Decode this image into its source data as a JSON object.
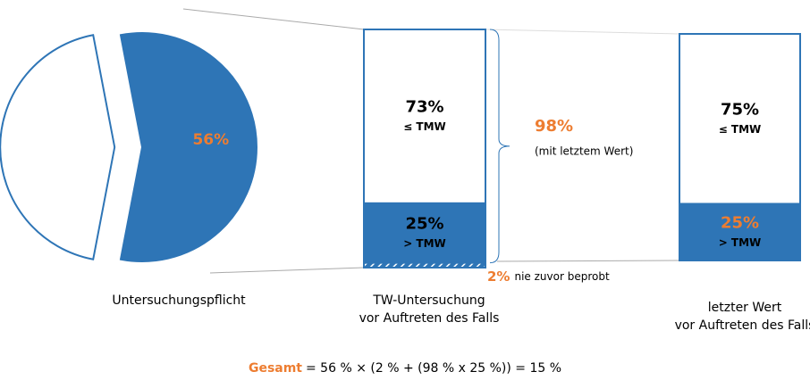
{
  "chart_data": [
    {
      "type": "pie",
      "values": [
        56,
        44
      ],
      "value_labels": [
        "56%",
        null
      ],
      "colors": [
        "#2e75b6",
        "#ffffff"
      ],
      "label": "Untersuchungspflicht"
    },
    {
      "type": "stacked-bar",
      "series": [
        {
          "name": "≤ TMW",
          "values": [
            73
          ],
          "value_labels": [
            "73%"
          ],
          "color": "#ffffff",
          "label_color": "#000000"
        },
        {
          "name": "> TMW",
          "values": [
            25
          ],
          "value_labels": [
            "25%"
          ],
          "color": "#2e75b6",
          "label_color": "#000000"
        },
        {
          "name": "nie zuvor beprobt",
          "values": [
            2
          ],
          "value_labels": [
            "2%"
          ],
          "color": "#2e75b6",
          "hatch": true,
          "label_color": "#ed7d31"
        }
      ],
      "label": [
        "TW-Untersuchung",
        "vor Auftreten des Falls"
      ],
      "bracket": {
        "value": 98,
        "label": "98%",
        "note": "(mit letztem Wert)"
      }
    },
    {
      "type": "stacked-bar",
      "series": [
        {
          "name": "≤ TMW",
          "values": [
            75
          ],
          "value_labels": [
            "75%"
          ],
          "color": "#ffffff",
          "label_color": "#000000"
        },
        {
          "name": "> TMW",
          "values": [
            25
          ],
          "value_labels": [
            "25%"
          ],
          "color": "#2e75b6",
          "label_color": "#ed7d31"
        }
      ],
      "label": [
        "letzter Wert",
        "vor Auftreten des Falls"
      ]
    }
  ],
  "formula": {
    "label": "Gesamt",
    "text": "= 56 % × (2 % + (98 % x 25 %)) = 15 %"
  }
}
